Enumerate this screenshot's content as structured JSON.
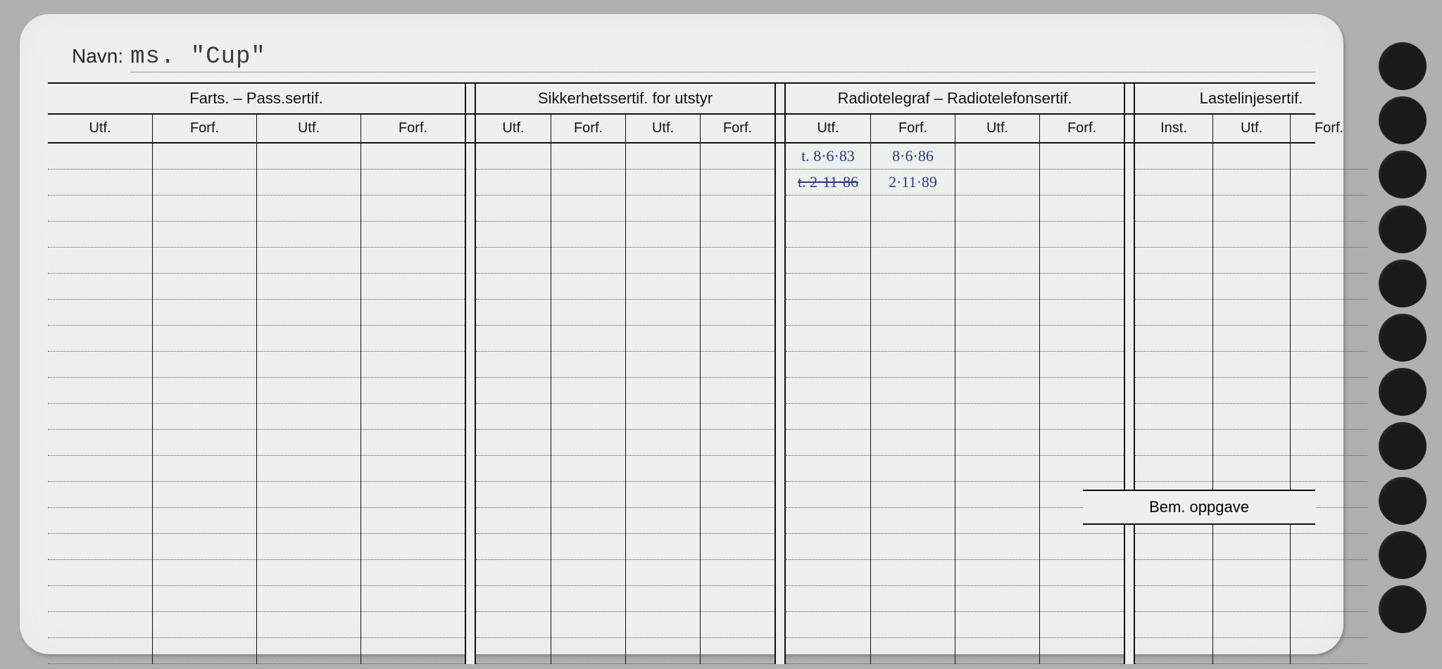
{
  "navn": {
    "label": "Navn:",
    "value": "ms. \"Cup\""
  },
  "groups": [
    {
      "title": "Farts. – Pass.sertif.",
      "subs": [
        "Utf.",
        "Forf.",
        "Utf.",
        "Forf."
      ]
    },
    {
      "title": "Sikkerhetssertif. for utstyr",
      "subs": [
        "Utf.",
        "Forf.",
        "Utf.",
        "Forf."
      ]
    },
    {
      "title": "Radiotelegraf – Radiotelefonsertif.",
      "subs": [
        "Utf.",
        "Forf.",
        "Utf.",
        "Forf."
      ]
    },
    {
      "title": "Lastelinjesertif.",
      "subs": [
        "Inst.",
        "Utf.",
        "Forf."
      ]
    }
  ],
  "bem_label": "Bem. oppgave",
  "num_data_rows": 20,
  "handwritten": {
    "row0": {
      "g3_utf1": "t. 8·6·83",
      "g3_forf1": "8·6·86"
    },
    "row1": {
      "g3_utf1": "t. 2·11·86",
      "g3_forf1": "2·11·89"
    }
  },
  "colors": {
    "card_bg": "#eef0ee",
    "scanner_bg": "#b0b0ae",
    "ink": "#111111",
    "dotted": "#555555",
    "pen_blue": "#2a3a8a",
    "hole": "#1a1a1a"
  },
  "num_holes": 11
}
